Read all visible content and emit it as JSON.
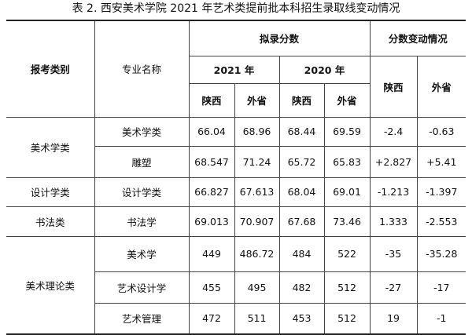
{
  "title": "表 2. 西安美术学院 2021 年艺术类提前批本科招生录取线变动情况",
  "header": {
    "category": "报考类别",
    "major": "专业名称",
    "scores": "拟录分数",
    "change": "分数变动情况",
    "years": [
      "2021 年",
      "2020 年"
    ],
    "sub": [
      "陕西",
      "外省",
      "陕西",
      "外省"
    ],
    "change_sub": [
      "陕西",
      "外省"
    ]
  },
  "table": {
    "groups": [
      {
        "category": "美术学类",
        "rows": [
          [
            "美术学类",
            "66.04",
            "68.96",
            "68.44",
            "69.59",
            "-2.4",
            "-0.63"
          ],
          [
            "雕塑",
            "68.547",
            "71.24",
            "65.72",
            "65.83",
            "+2.827",
            "+5.41"
          ]
        ]
      },
      {
        "category": "设计学类",
        "rows": [
          [
            "设计学类",
            "66.827",
            "67.613",
            "68.04",
            "69.01",
            "-1.213",
            "-1.397"
          ]
        ]
      },
      {
        "category": "书法类",
        "rows": [
          [
            "书法学",
            "69.013",
            "70.907",
            "67.68",
            "73.46",
            "1.333",
            "-2.553"
          ]
        ]
      },
      {
        "category": "美术理论类",
        "rows": [
          [
            "美术学",
            "449",
            "486.72",
            "484",
            "522",
            "-35",
            "-35.28"
          ],
          [
            "艺术设计学",
            "455",
            "495",
            "482",
            "512",
            "-27",
            "-17"
          ],
          [
            "艺术管理",
            "472",
            "511",
            "453",
            "512",
            "19",
            "-1"
          ]
        ]
      }
    ]
  }
}
